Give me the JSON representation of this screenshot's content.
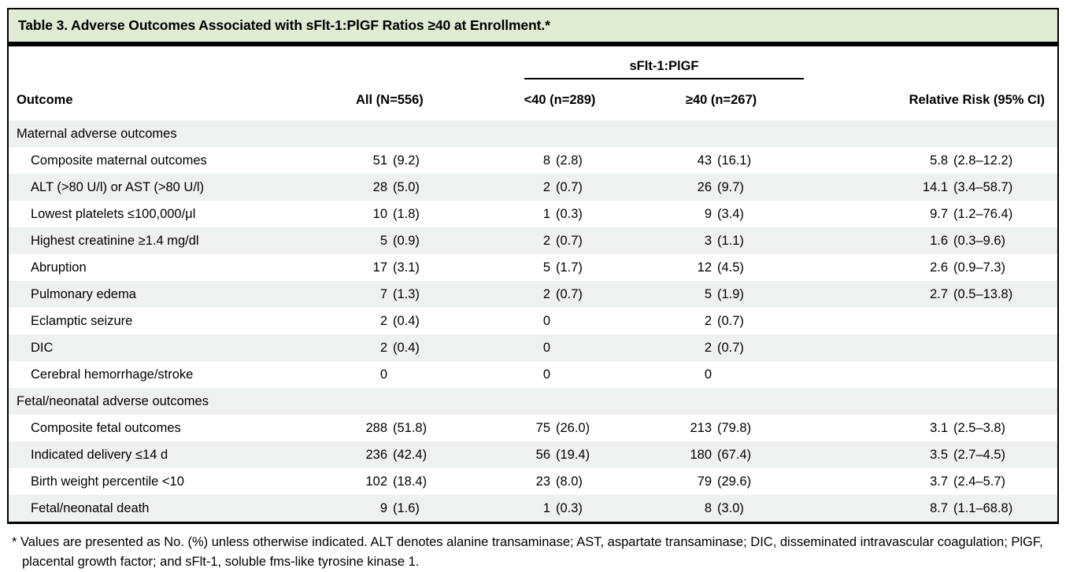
{
  "title": "Table 3. Adverse Outcomes Associated with sFlt-1:PlGF Ratios ≥40 at Enrollment.*",
  "columns": {
    "outcome": "Outcome",
    "all": "All (N=556)",
    "spanner": "sFlt-1:PlGF",
    "lt40": "<40 (n=289)",
    "ge40": "≥40 (n=267)",
    "rr": "Relative Risk (95% CI)"
  },
  "rows": [
    {
      "label": "Maternal adverse outcomes",
      "section": true,
      "all": "",
      "lt40": "",
      "ge40": "",
      "rr": ""
    },
    {
      "label": "Composite maternal outcomes",
      "section": false,
      "all": "51 (9.2)",
      "lt40": "8 (2.8)",
      "ge40": "43 (16.1)",
      "rr": "5.8 (2.8–12.2)"
    },
    {
      "label": "ALT (>80 U/l) or AST (>80 U/l)",
      "section": false,
      "all": "28 (5.0)",
      "lt40": "2 (0.7)",
      "ge40": "26 (9.7)",
      "rr": "14.1 (3.4–58.7)"
    },
    {
      "label": "Lowest platelets ≤100,000/μl",
      "section": false,
      "all": "10 (1.8)",
      "lt40": "1 (0.3)",
      "ge40": "9 (3.4)",
      "rr": "9.7 (1.2–76.4)"
    },
    {
      "label": "Highest creatinine ≥1.4 mg/dl",
      "section": false,
      "all": "5 (0.9)",
      "lt40": "2 (0.7)",
      "ge40": "3 (1.1)",
      "rr": "1.6 (0.3–9.6)"
    },
    {
      "label": "Abruption",
      "section": false,
      "all": "17 (3.1)",
      "lt40": "5 (1.7)",
      "ge40": "12 (4.5)",
      "rr": "2.6 (0.9–7.3)"
    },
    {
      "label": "Pulmonary edema",
      "section": false,
      "all": "7 (1.3)",
      "lt40": "2 (0.7)",
      "ge40": "5 (1.9)",
      "rr": "2.7 (0.5–13.8)"
    },
    {
      "label": "Eclamptic seizure",
      "section": false,
      "all": "2 (0.4)",
      "lt40": "0",
      "ge40": "2 (0.7)",
      "rr": ""
    },
    {
      "label": "DIC",
      "section": false,
      "all": "2 (0.4)",
      "lt40": "0",
      "ge40": "2 (0.7)",
      "rr": ""
    },
    {
      "label": "Cerebral hemorrhage/stroke",
      "section": false,
      "all": "0",
      "lt40": "0",
      "ge40": "0",
      "rr": ""
    },
    {
      "label": "Fetal/neonatal adverse outcomes",
      "section": true,
      "all": "",
      "lt40": "",
      "ge40": "",
      "rr": ""
    },
    {
      "label": "Composite fetal outcomes",
      "section": false,
      "all": "288 (51.8)",
      "lt40": "75 (26.0)",
      "ge40": "213 (79.8)",
      "rr": "3.1 (2.5–3.8)"
    },
    {
      "label": "Indicated delivery ≤14 d",
      "section": false,
      "all": "236 (42.4)",
      "lt40": "56 (19.4)",
      "ge40": "180 (67.4)",
      "rr": "3.5 (2.7–4.5)"
    },
    {
      "label": "Birth weight percentile <10",
      "section": false,
      "all": "102 (18.4)",
      "lt40": "23 (8.0)",
      "ge40": "79 (29.6)",
      "rr": "3.7 (2.4–5.7)"
    },
    {
      "label": "Fetal/neonatal death",
      "section": false,
      "all": "9 (1.6)",
      "lt40": "1 (0.3)",
      "ge40": "8 (3.0)",
      "rr": "8.7 (1.1–68.8)"
    }
  ],
  "footnote": "* Values are presented as No. (%) unless otherwise indicated. ALT denotes alanine transaminase; AST, aspartate transaminase; DIC, disseminated intravascular coagulation; PlGF, placental growth factor; and sFlt-1, soluble fms-like tyrosine kinase 1.",
  "colors": {
    "title_bg": "#dfecd3",
    "row_stripe": "#eef1f1",
    "border": "#000000",
    "text": "#000000"
  }
}
